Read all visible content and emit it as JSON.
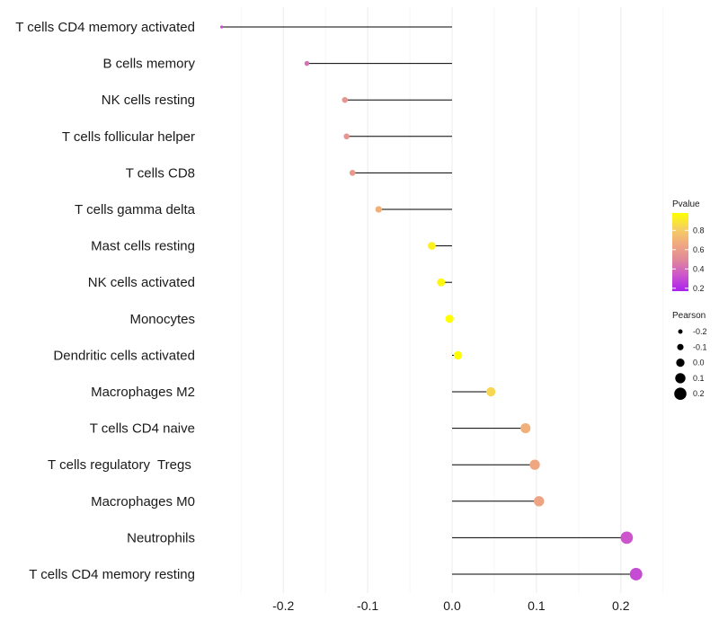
{
  "chart_data": {
    "type": "lollipop",
    "title": "",
    "xlabel": "",
    "ylabel": "",
    "xlim": [
      -0.295,
      0.295
    ],
    "x_ticks": [
      -0.2,
      -0.1,
      0.0,
      0.1,
      0.2
    ],
    "x_tick_labels": [
      "-0.2",
      "-0.1",
      "0.0",
      "0.1",
      "0.2"
    ],
    "grid": true,
    "legend_position": "right",
    "points": [
      {
        "category": "T cells CD4 memory activated",
        "pearson": -0.273,
        "pvalue": 0.31
      },
      {
        "category": "B cells memory",
        "pearson": -0.172,
        "pvalue": 0.42
      },
      {
        "category": "NK cells resting",
        "pearson": -0.127,
        "pvalue": 0.56
      },
      {
        "category": "T cells follicular helper",
        "pearson": -0.125,
        "pvalue": 0.56
      },
      {
        "category": "T cells CD8",
        "pearson": -0.118,
        "pvalue": 0.58
      },
      {
        "category": "T cells gamma delta",
        "pearson": -0.087,
        "pvalue": 0.69
      },
      {
        "category": "Mast cells resting",
        "pearson": -0.024,
        "pvalue": 0.93
      },
      {
        "category": "NK cells activated",
        "pearson": -0.013,
        "pvalue": 0.96
      },
      {
        "category": "Monocytes",
        "pearson": -0.003,
        "pvalue": 0.99
      },
      {
        "category": "Dendritic cells activated",
        "pearson": 0.007,
        "pvalue": 0.98
      },
      {
        "category": "Macrophages M2",
        "pearson": 0.046,
        "pvalue": 0.84
      },
      {
        "category": "T cells CD4 naive",
        "pearson": 0.087,
        "pvalue": 0.69
      },
      {
        "category": "T cells regulatory  Tregs ",
        "pearson": 0.098,
        "pvalue": 0.65
      },
      {
        "category": "Macrophages M0",
        "pearson": 0.103,
        "pvalue": 0.63
      },
      {
        "category": "Neutrophils",
        "pearson": 0.207,
        "pvalue": 0.33
      },
      {
        "category": "T cells CD4 memory resting",
        "pearson": 0.218,
        "pvalue": 0.3
      }
    ],
    "legends": {
      "color": {
        "title": "Pvalue",
        "range": [
          0.17,
          0.98
        ],
        "ticks": [
          0.2,
          0.4,
          0.6,
          0.8
        ],
        "tick_labels": [
          "0.2",
          "0.4",
          "0.6",
          "0.8"
        ],
        "colors": [
          "#aa22ee",
          "#cc55cc",
          "#e0889a",
          "#f0a880",
          "#f5d060",
          "#ffff00"
        ]
      },
      "size": {
        "title": "Pearson",
        "values": [
          -0.2,
          -0.1,
          0.0,
          0.1,
          0.2
        ],
        "labels": [
          "-0.2",
          "-0.1",
          "0.0",
          "0.1",
          "0.2"
        ]
      }
    }
  }
}
